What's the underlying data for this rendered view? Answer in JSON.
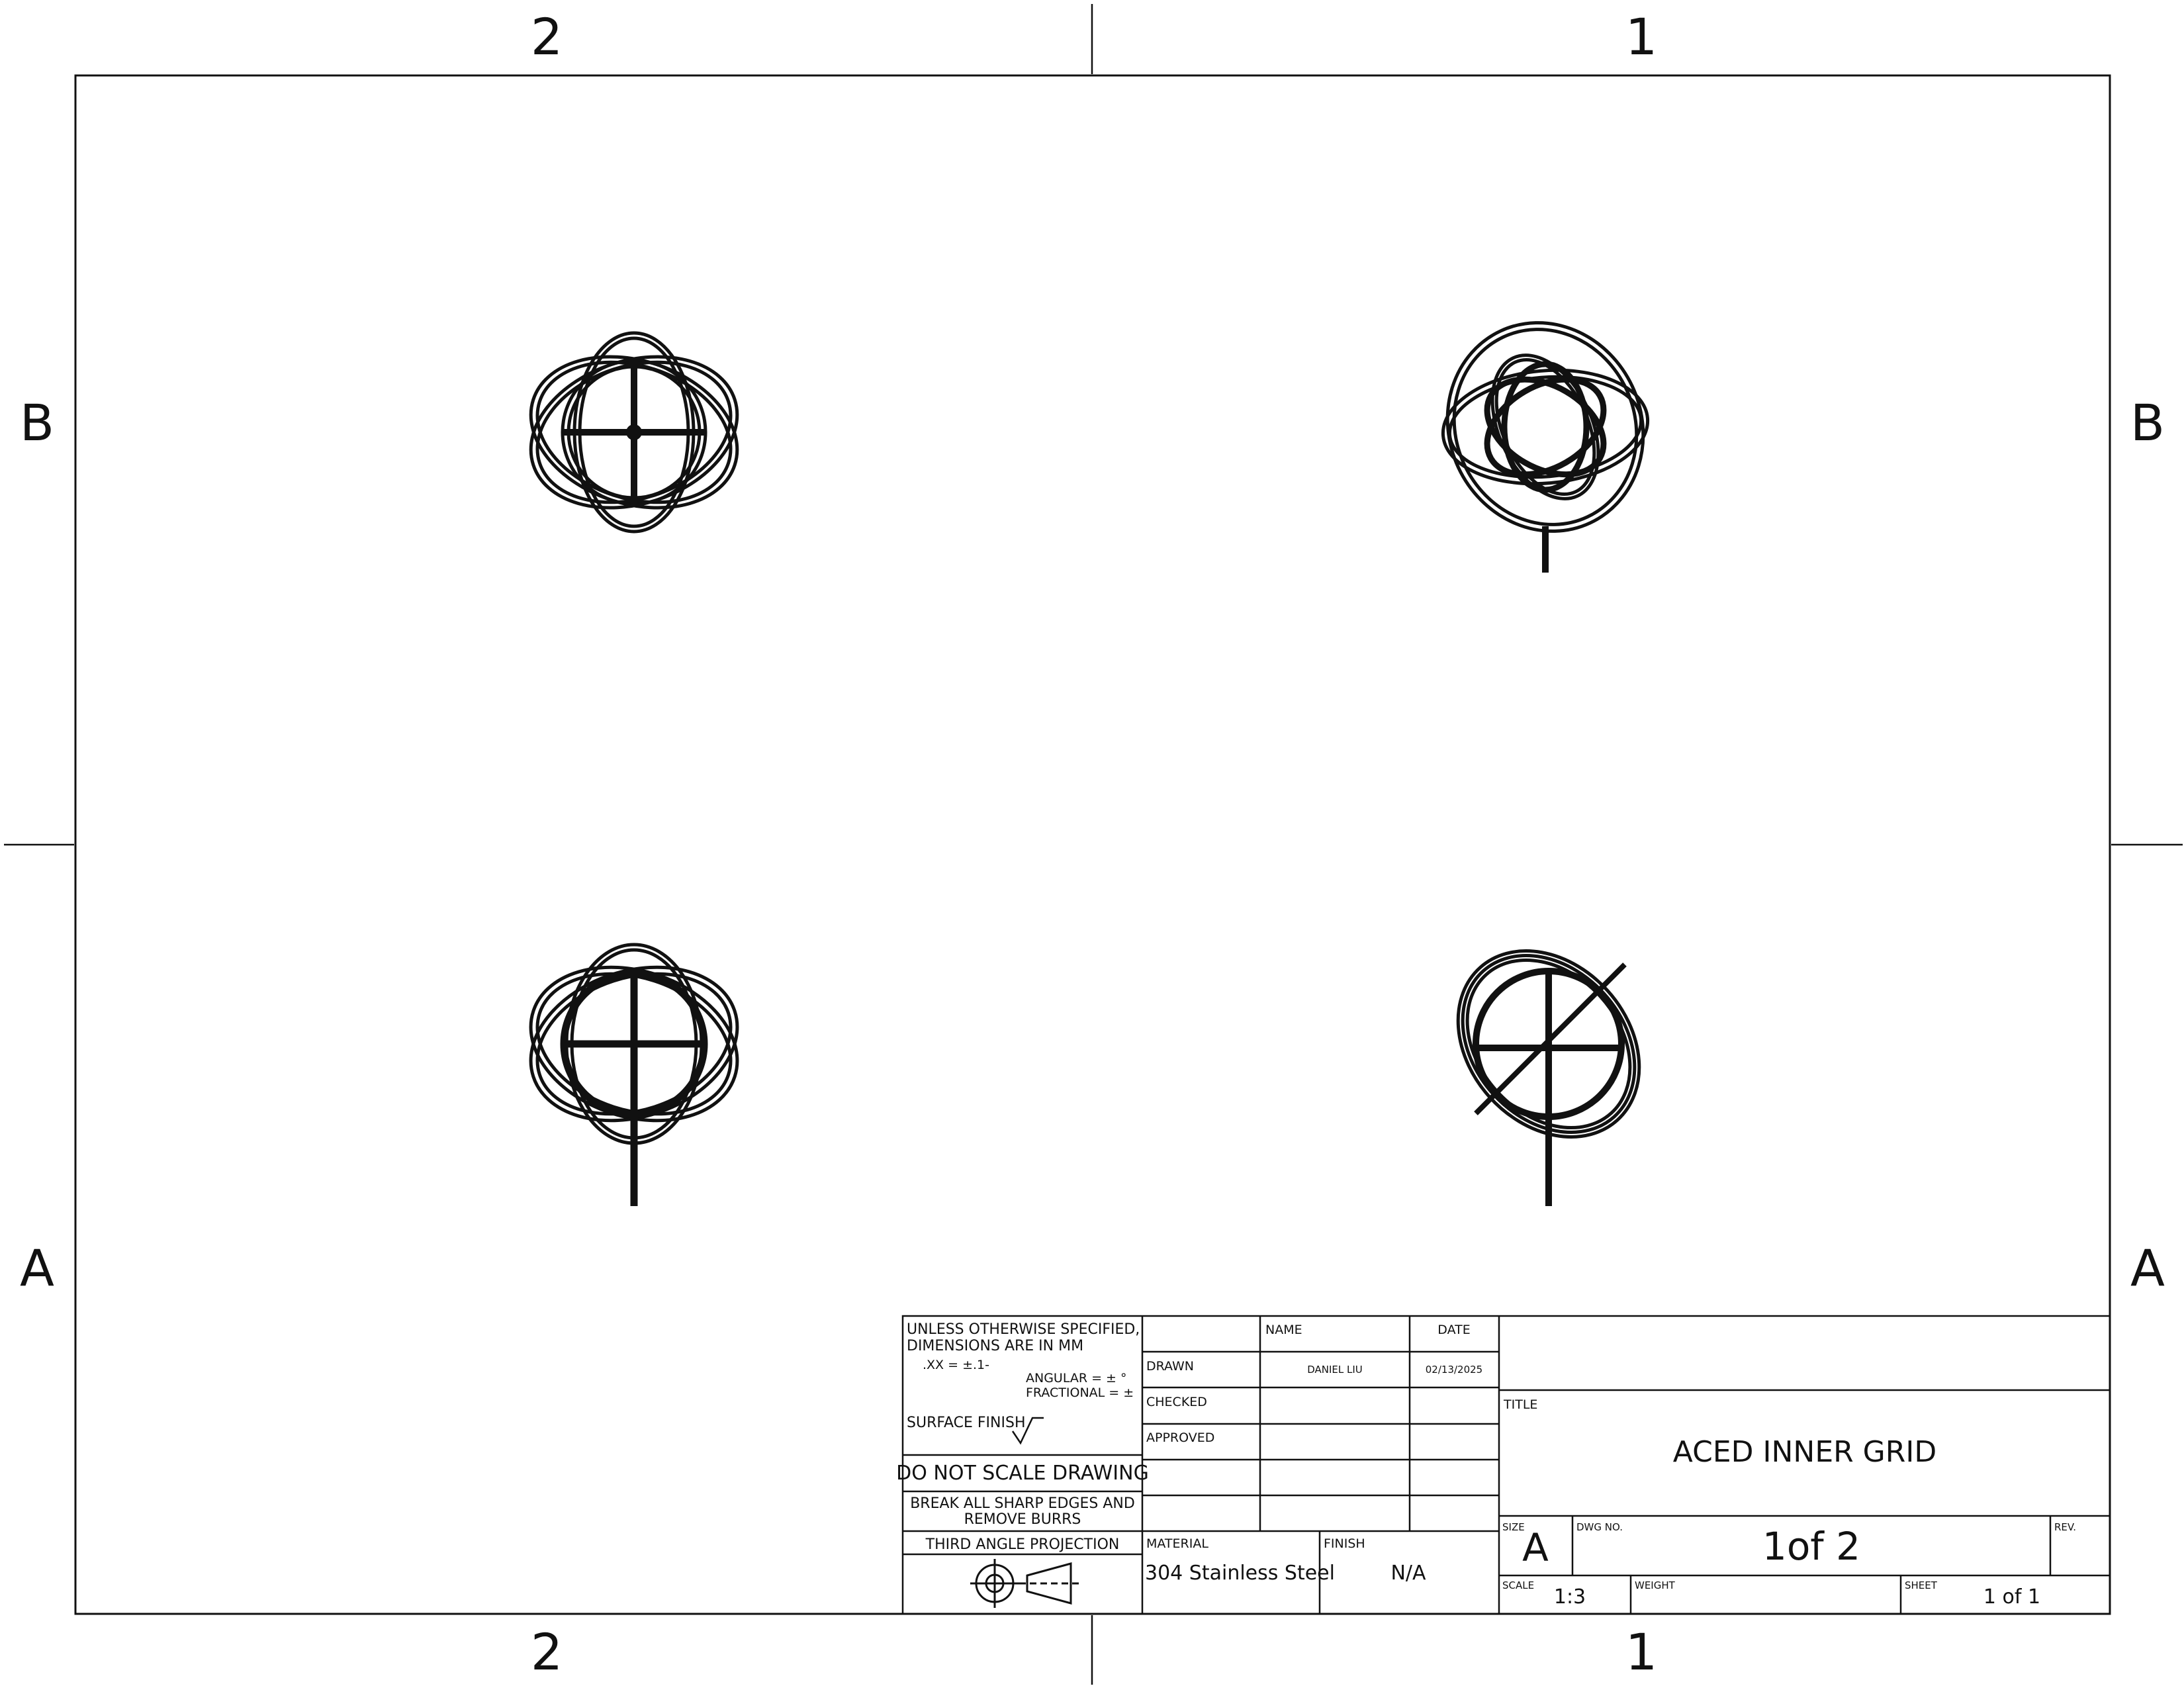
{
  "zones": {
    "columns": [
      "2",
      "1"
    ],
    "rows": [
      "B",
      "A"
    ]
  },
  "notes": {
    "line1": "UNLESS OTHERWISE SPECIFIED,",
    "line2": "DIMENSIONS ARE IN MM",
    "tolerance_xx": ".XX = ±.1-",
    "tolerance_angular": "ANGULAR = ± °",
    "tolerance_fractional": "FRACTIONAL = ±",
    "surface_finish": "SURFACE FINISH",
    "do_not_scale": "DO NOT SCALE DRAWING",
    "break_edges_1": "BREAK ALL SHARP EDGES AND",
    "break_edges_2": "REMOVE BURRS",
    "projection": "THIRD ANGLE PROJECTION"
  },
  "signoff": {
    "name_header": "NAME",
    "date_header": "DATE",
    "drawn_label": "DRAWN",
    "drawn_name": "DANIEL LIU",
    "drawn_date": "02/13/2025",
    "checked_label": "CHECKED",
    "approved_label": "APPROVED"
  },
  "material": {
    "label": "MATERIAL",
    "value": "304 Stainless Steel",
    "finish_label": "FINISH",
    "finish_value": "N/A"
  },
  "title_block": {
    "title_label": "TITLE",
    "title": "ACED INNER GRID",
    "size_label": "SIZE",
    "size": "A",
    "dwg_no_label": "DWG NO.",
    "dwg_no": "1of 2",
    "rev_label": "REV.",
    "scale_label": "SCALE",
    "scale": "1:3",
    "weight_label": "WEIGHT",
    "sheet_label": "SHEET",
    "sheet": "1 of 1"
  },
  "views": [
    "gimbal-view-top",
    "gimbal-view-front",
    "gimbal-view-iso",
    "gimbal-view-side"
  ]
}
